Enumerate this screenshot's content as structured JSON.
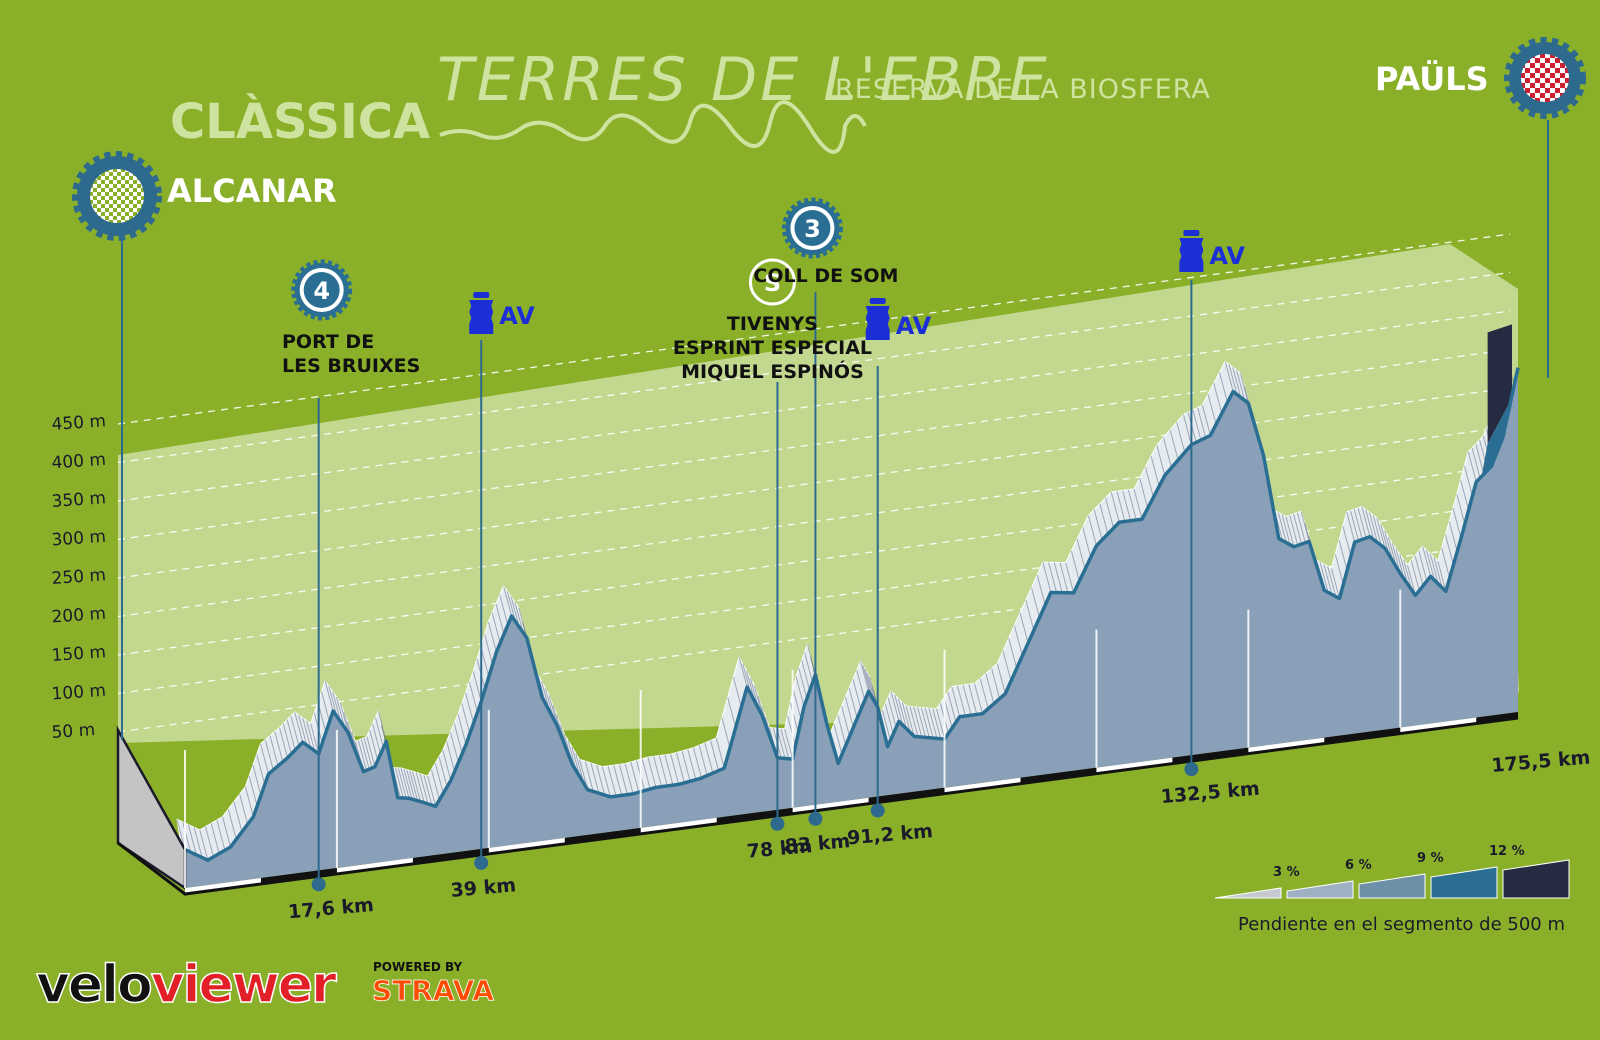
{
  "header": {
    "title_main": "TERRES DE L'EBRE",
    "title_sub": "RESERVA DE LA BIOSFERA",
    "race_type": "CLÀSSICA"
  },
  "start": {
    "name": "ALCANAR"
  },
  "finish": {
    "name": "PAÜLS",
    "km_label": "175,5 km"
  },
  "chart_data": {
    "type": "area",
    "title": "",
    "xlabel": "",
    "ylabel": "",
    "xlim": [
      0,
      175.5
    ],
    "ylim": [
      0,
      450
    ],
    "yticks": [
      50,
      100,
      150,
      200,
      250,
      300,
      350,
      400,
      450
    ],
    "ytick_labels": [
      "50 m",
      "100 m",
      "150 m",
      "200 m",
      "250 m",
      "300 m",
      "350 m",
      "400 m",
      "450 m"
    ],
    "grid": true,
    "series": [
      {
        "x": [
          0,
          3,
          6,
          9,
          11,
          13.5,
          15.5,
          17.6,
          19.5,
          21.5,
          23.5,
          25,
          26.5,
          28,
          29.5,
          31,
          33,
          35,
          37,
          39,
          41,
          43,
          45,
          47,
          49,
          51,
          53,
          56,
          59,
          62,
          65,
          68,
          71,
          74,
          76,
          78,
          80,
          81.5,
          83,
          84.5,
          86,
          88,
          90,
          91.2,
          92.5,
          94,
          96,
          98,
          100,
          102,
          105,
          108,
          111,
          114,
          117,
          120,
          123,
          126,
          129,
          132.5,
          135,
          138,
          140,
          142,
          144,
          146,
          148,
          150,
          152,
          154,
          156,
          158,
          160,
          162,
          164,
          166,
          168,
          170,
          172,
          173.5,
          175.5
        ],
        "y": [
          30,
          10,
          25,
          65,
          125,
          145,
          165,
          145,
          205,
          170,
          110,
          115,
          150,
          65,
          62,
          55,
          45,
          80,
          130,
          190,
          260,
          310,
          275,
          185,
          140,
          80,
          40,
          25,
          25,
          30,
          30,
          35,
          45,
          160,
          115,
          50,
          45,
          120,
          165,
          90,
          30,
          80,
          130,
          105,
          45,
          80,
          55,
          50,
          45,
          75,
          75,
          100,
          170,
          240,
          235,
          300,
          330,
          330,
          390,
          430,
          440,
          500,
          480,
          400,
          275,
          260,
          265,
          190,
          175,
          255,
          260,
          240,
          200,
          165,
          190,
          165,
          240,
          320,
          340,
          380,
          480
        ]
      }
    ],
    "annotations": [
      {
        "type": "climb",
        "category": "4",
        "name_line1": "PORT DE",
        "name_line2": "LES BRUIXES",
        "km": 17.6,
        "km_label": "17,6 km"
      },
      {
        "type": "feed",
        "label": "AV",
        "km": 39,
        "km_label": "39 km"
      },
      {
        "type": "sprint",
        "symbol": "S",
        "name_line1": "TIVENYS",
        "name_line2": "ESPRINT ESPECIAL",
        "name_line3": "MIQUEL ESPINÓS",
        "km": 78,
        "km_label": "78 km"
      },
      {
        "type": "climb",
        "category": "3",
        "name_line1": "COLL DE SOM",
        "km": 83,
        "km_label": "83 km"
      },
      {
        "type": "feed",
        "label": "AV",
        "km": 91.2,
        "km_label": "91,2 km"
      },
      {
        "type": "feed",
        "label": "AV",
        "km": 132.5,
        "km_label": "132,5 km"
      }
    ]
  },
  "legend": {
    "steps": [
      "3 %",
      "6 %",
      "9 %",
      "12 %"
    ],
    "colors": [
      "#c6cad0",
      "#9fb0c2",
      "#6e8fa8",
      "#2a6f93",
      "#252b40"
    ],
    "caption": "Pendiente en el segmento de 500 m"
  },
  "branding": {
    "velo": "velo",
    "viewer": "viewer",
    "powered_by": "POWERED BY",
    "strava": "STRAVA"
  },
  "colors": {
    "background": "#8ab02a",
    "profile_front": "#8aa0b8",
    "profile_edge": "#2a6f93",
    "marker_blue": "#2e6a8e",
    "feed_blue": "#1c2fd6",
    "header_text": "#cfe3a0"
  }
}
